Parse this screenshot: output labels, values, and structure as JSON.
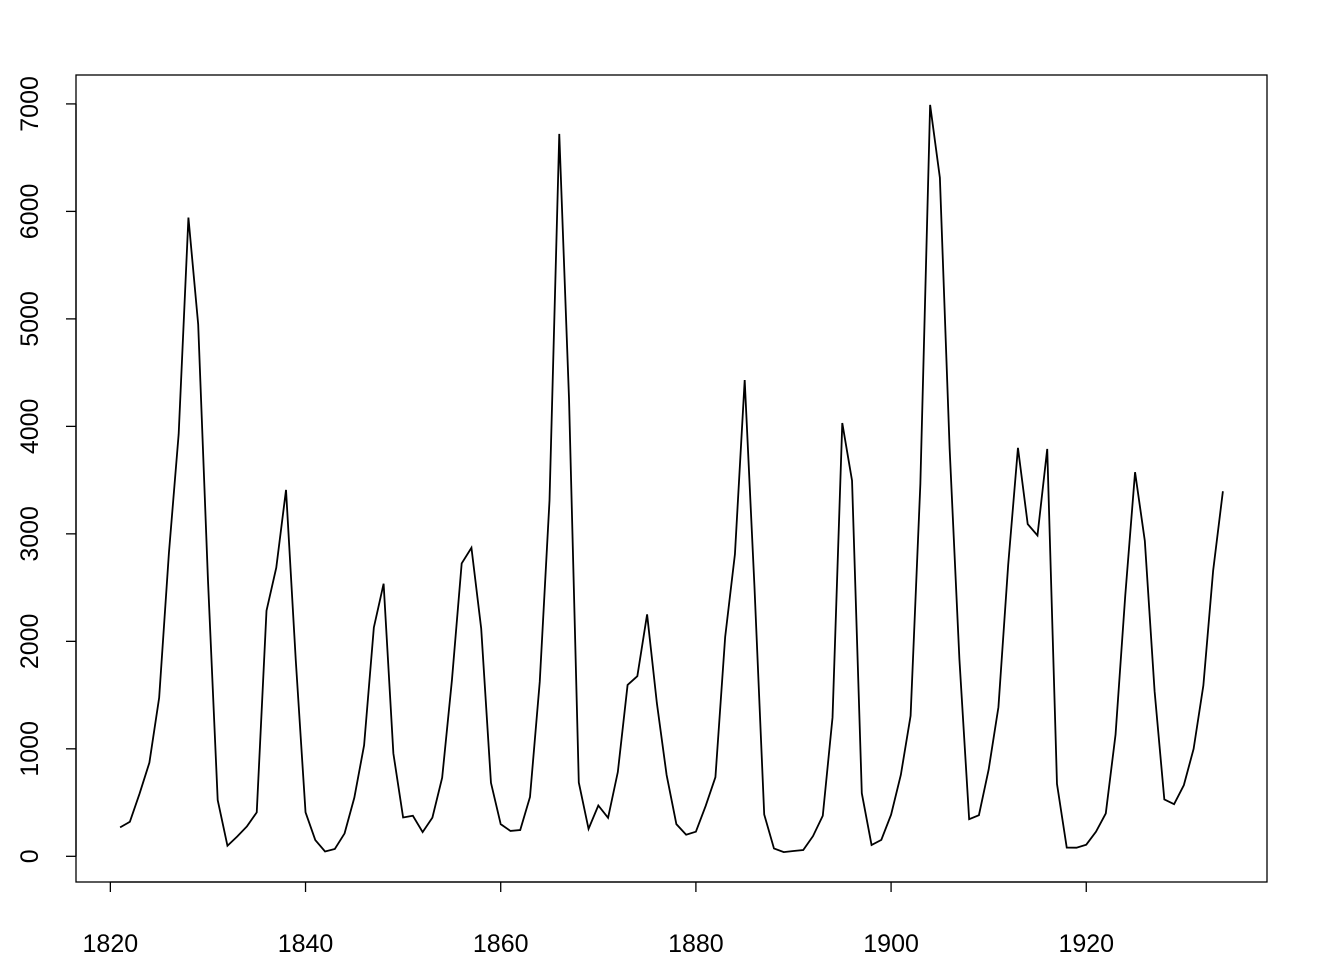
{
  "chart_data": {
    "type": "line",
    "color": "#000000",
    "x": [
      1821,
      1822,
      1823,
      1824,
      1825,
      1826,
      1827,
      1828,
      1829,
      1830,
      1831,
      1832,
      1833,
      1834,
      1835,
      1836,
      1837,
      1838,
      1839,
      1840,
      1841,
      1842,
      1843,
      1844,
      1845,
      1846,
      1847,
      1848,
      1849,
      1850,
      1851,
      1852,
      1853,
      1854,
      1855,
      1856,
      1857,
      1858,
      1859,
      1860,
      1861,
      1862,
      1863,
      1864,
      1865,
      1866,
      1867,
      1868,
      1869,
      1870,
      1871,
      1872,
      1873,
      1874,
      1875,
      1876,
      1877,
      1878,
      1879,
      1880,
      1881,
      1882,
      1883,
      1884,
      1885,
      1886,
      1887,
      1888,
      1889,
      1890,
      1891,
      1892,
      1893,
      1894,
      1895,
      1896,
      1897,
      1898,
      1899,
      1900,
      1901,
      1902,
      1903,
      1904,
      1905,
      1906,
      1907,
      1908,
      1909,
      1910,
      1911,
      1912,
      1913,
      1914,
      1915,
      1916,
      1917,
      1918,
      1919,
      1920,
      1921,
      1922,
      1923,
      1924,
      1925,
      1926,
      1927,
      1928,
      1929,
      1930,
      1931,
      1932,
      1933,
      1934
    ],
    "values": [
      269,
      321,
      585,
      871,
      1475,
      2821,
      3928,
      5943,
      4950,
      2577,
      523,
      98,
      184,
      279,
      409,
      2285,
      2685,
      3409,
      1824,
      409,
      151,
      45,
      68,
      213,
      546,
      1033,
      2129,
      2536,
      957,
      361,
      377,
      225,
      360,
      731,
      1638,
      2725,
      2871,
      2119,
      684,
      299,
      236,
      245,
      552,
      1623,
      3311,
      6721,
      4254,
      687,
      255,
      473,
      358,
      784,
      1594,
      1676,
      2251,
      1426,
      756,
      299,
      201,
      229,
      469,
      736,
      2042,
      2811,
      4431,
      2511,
      389,
      73,
      39,
      49,
      59,
      188,
      377,
      1292,
      4031,
      3495,
      587,
      105,
      153,
      387,
      758,
      1307,
      3465,
      6991,
      6313,
      3794,
      1836,
      345,
      382,
      808,
      1388,
      2713,
      3800,
      3091,
      2985,
      3790,
      674,
      81,
      80,
      108,
      229,
      399,
      1132,
      2432,
      3574,
      2935,
      1537,
      529,
      485,
      662,
      1000,
      1590,
      2657,
      3396
    ],
    "xlim": [
      1816.48,
      1938.52
    ],
    "xticks": [
      1820,
      1840,
      1860,
      1880,
      1900,
      1920
    ],
    "ylim": [
      -239,
      7269
    ],
    "yticks": [
      0,
      1000,
      2000,
      3000,
      4000,
      5000,
      6000,
      7000
    ]
  }
}
